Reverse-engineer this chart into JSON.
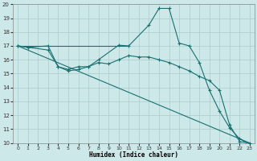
{
  "xlabel": "Humidex (Indice chaleur)",
  "bg_color": "#cce8e8",
  "grid_color": "#aacccc",
  "line_color": "#1a7070",
  "series": [
    {
      "x": [
        0,
        11
      ],
      "y": [
        17,
        17
      ],
      "markers": false
    },
    {
      "x": [
        0,
        1,
        3,
        4,
        5,
        6,
        7,
        8,
        10,
        11,
        13,
        14,
        15,
        16,
        17,
        18,
        19,
        20,
        21,
        22,
        23
      ],
      "y": [
        17,
        16.9,
        17.0,
        15.5,
        15.3,
        15.5,
        15.5,
        16.0,
        17.05,
        17.0,
        18.5,
        19.7,
        19.7,
        17.2,
        17.0,
        15.8,
        13.8,
        12.3,
        11.1,
        10.3,
        9.9
      ],
      "markers": true
    },
    {
      "x": [
        0,
        1,
        3,
        4,
        5,
        6,
        7,
        8,
        9,
        10,
        11,
        12,
        13,
        14,
        15,
        16,
        17,
        18,
        19,
        20,
        21,
        22,
        23
      ],
      "y": [
        17,
        16.9,
        16.7,
        15.5,
        15.2,
        15.3,
        15.5,
        15.8,
        15.7,
        16.0,
        16.3,
        16.2,
        16.2,
        16.0,
        15.8,
        15.5,
        15.2,
        14.8,
        14.5,
        13.8,
        11.3,
        10.1,
        10.0
      ],
      "markers": true
    },
    {
      "x": [
        0,
        23
      ],
      "y": [
        17,
        10.0
      ],
      "markers": false
    }
  ],
  "xlim": [
    -0.5,
    23.5
  ],
  "ylim": [
    10,
    20
  ],
  "xticks": [
    0,
    1,
    2,
    3,
    4,
    5,
    6,
    7,
    8,
    9,
    10,
    11,
    12,
    13,
    14,
    15,
    16,
    17,
    18,
    19,
    20,
    21,
    22,
    23
  ],
  "yticks": [
    10,
    11,
    12,
    13,
    14,
    15,
    16,
    17,
    18,
    19,
    20
  ]
}
